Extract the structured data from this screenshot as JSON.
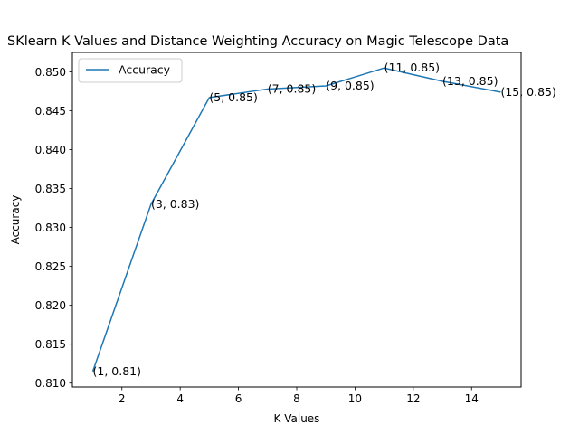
{
  "chart_data": {
    "type": "line",
    "title": "SKlearn K Values and Distance Weighting Accuracy on Magic Telescope Data",
    "xlabel": "K Values",
    "ylabel": "Accuracy",
    "xlim": [
      0.3,
      15.7
    ],
    "ylim": [
      0.8095,
      0.8525
    ],
    "xticks": [
      2,
      4,
      6,
      8,
      10,
      12,
      14
    ],
    "yticks": [
      0.81,
      0.815,
      0.82,
      0.825,
      0.83,
      0.835,
      0.84,
      0.845,
      0.85
    ],
    "xtick_labels": [
      "2",
      "4",
      "6",
      "8",
      "10",
      "12",
      "14"
    ],
    "ytick_labels": [
      "0.810",
      "0.815",
      "0.820",
      "0.825",
      "0.830",
      "0.835",
      "0.840",
      "0.845",
      "0.850"
    ],
    "grid": false,
    "legend_position": "top-left",
    "series": [
      {
        "name": "Accuracy",
        "color": "#1f77b4",
        "x": [
          1,
          3,
          5,
          7,
          9,
          11,
          13,
          15
        ],
        "y": [
          0.8115,
          0.833,
          0.8467,
          0.8478,
          0.8482,
          0.8505,
          0.8488,
          0.8474
        ]
      }
    ],
    "annotations": [
      "(1, 0.81)",
      "(3, 0.83)",
      "(5, 0.85)",
      "(7, 0.85)",
      "(9, 0.85)",
      "(11, 0.85)",
      "(13, 0.85)",
      "(15, 0.85)"
    ]
  }
}
